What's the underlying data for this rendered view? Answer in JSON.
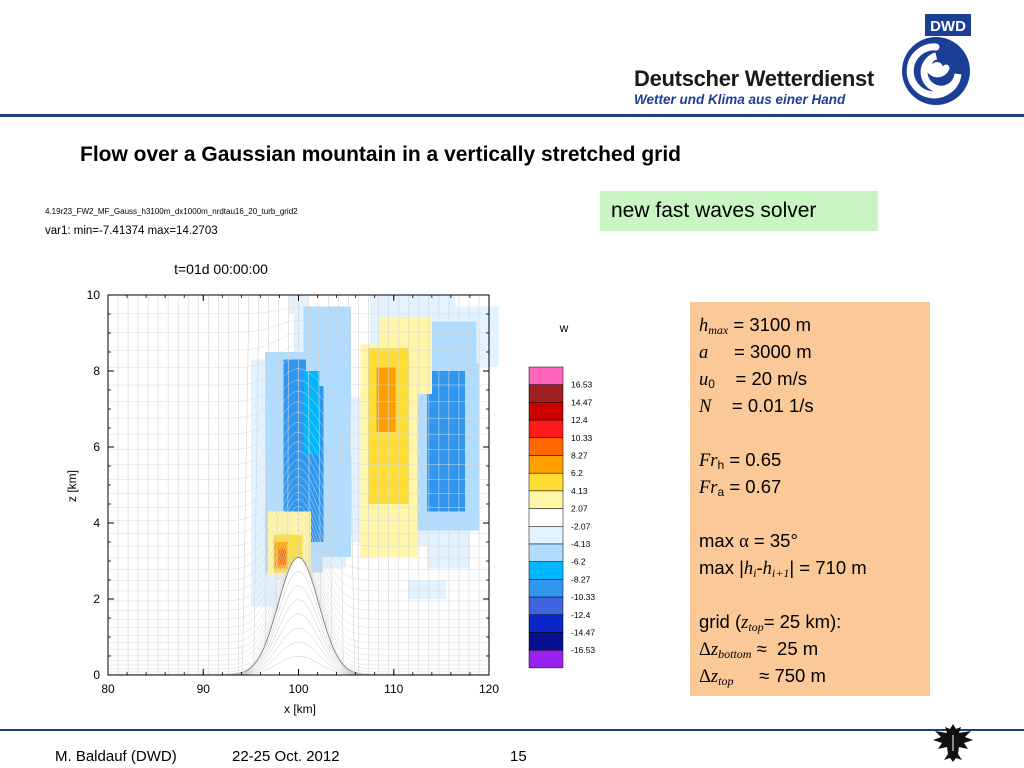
{
  "header": {
    "org_name": "Deutscher Wetterdienst",
    "tagline": "Wetter und Klima aus einer Hand",
    "logo_text": "DWD",
    "brand_color": "#1b3f95"
  },
  "slide_title": "Flow over a Gaussian mountain in a vertically stretched grid",
  "solver_badge": "new fast waves solver",
  "params": {
    "hmax": {
      "sym": "h",
      "sub": "max",
      "val": " = 3100 m"
    },
    "a": {
      "sym": "a",
      "val": "     = 3000 m"
    },
    "u0": {
      "sym": "u",
      "sub": "0",
      "val": "    = 20 m/s"
    },
    "N": {
      "sym": "N",
      "val": "    = 0.01 1/s"
    },
    "Frh": {
      "sym": "Fr",
      "sub": "h",
      "val": " = 0.65"
    },
    "Fra": {
      "sym": "Fr",
      "sub": "a",
      "val": " = 0.67"
    },
    "max_alpha": {
      "pre": "max ",
      "greek": "α",
      "val": " = 35°"
    },
    "max_dh": {
      "pre": "max |",
      "h1": "h",
      "s1": "i",
      "mid": "-",
      "h2": "h",
      "s2": "i+1",
      "val": "| = 710 m"
    },
    "grid": {
      "pre": "grid (",
      "sym": "z",
      "sub": "top",
      "val": "= 25 km):"
    },
    "dz_bottom": {
      "greek": "Δ",
      "sym": "z",
      "sub": "bottom",
      "val": " ≈  25 m"
    },
    "dz_top": {
      "greek": "Δ",
      "sym": "z",
      "sub": "top",
      "val": "     ≈ 750 m"
    }
  },
  "chart_data": {
    "type": "heatmap",
    "file_label": "4.19r23_FW2_MF_Gauss_h3100m_dx1000m_nrdtau16_20_turb_grid2",
    "var_label": "var1:   min=-7.41374   max=14.2703",
    "title": "t=01d 00:00:00",
    "xlabel": "x [km]",
    "ylabel": "z [km]",
    "xlim": [
      80,
      120
    ],
    "ylim": [
      0,
      10
    ],
    "x_ticks": [
      "80",
      "90",
      "100",
      "110",
      "120"
    ],
    "y_ticks": [
      "0",
      "2",
      "4",
      "6",
      "8",
      "10"
    ],
    "x_tick_values": [
      80,
      90,
      100,
      110,
      120
    ],
    "y_tick_values": [
      0,
      2,
      4,
      6,
      8,
      10
    ],
    "terrain": {
      "hmax_m": 3100,
      "a_m": 3000,
      "center_km": 100
    },
    "colorbar": {
      "label": "w",
      "colors": [
        "#ff66bb",
        "#a01e1e",
        "#cc0000",
        "#ff1a1a",
        "#ff6a00",
        "#ffa000",
        "#ffdd33",
        "#fff6a8",
        "#ffffff",
        "#e2f2ff",
        "#b0dcff",
        "#00b6ff",
        "#2f97ef",
        "#3f64e0",
        "#0b26c8",
        "#06108f",
        "#9a22ee"
      ],
      "labels": [
        "16.53",
        "14.47",
        "12.4",
        "10.33",
        "8.27",
        "6.2",
        "4.13",
        "2.07",
        "-2.07",
        "-4.13",
        "-6.2",
        "-8.27",
        "-10.33",
        "-12.4",
        "-14.47",
        "-16.53"
      ]
    },
    "fields": [
      {
        "color": "#e2f2ff",
        "cells": [
          [
            95,
            2.5,
            6.5,
            8.3
          ],
          [
            99.5,
            2.8,
            5.5,
            9.5
          ],
          [
            95,
            1.8,
            2.8,
            3.6
          ],
          [
            105,
            3.5,
            6.5,
            7.3
          ],
          [
            107,
            3.4,
            7.5,
            8.5
          ],
          [
            107.5,
            7.7,
            9,
            10
          ],
          [
            113.5,
            2.8,
            4.5,
            8.5
          ],
          [
            114,
            8.1,
            7,
            9.7
          ],
          [
            111.5,
            2,
            4,
            2.5
          ],
          [
            99,
            9.5,
            2,
            10
          ]
        ]
      },
      {
        "color": "#b0dcff",
        "cells": [
          [
            96.5,
            2.7,
            6,
            8.5
          ],
          [
            100.5,
            3.1,
            5,
            9.7
          ],
          [
            112,
            3.8,
            7,
            8.2
          ],
          [
            113.2,
            7.8,
            5.5,
            9.3
          ]
        ]
      },
      {
        "color": "#2f97ef",
        "cells": [
          [
            98.4,
            3.2,
            2.4,
            8.3
          ],
          [
            100.2,
            3.5,
            2.4,
            7.6
          ],
          [
            113.5,
            4.3,
            4,
            8
          ]
        ]
      },
      {
        "color": "#00b6ff",
        "cells": [
          [
            100.6,
            5.8,
            1.6,
            8
          ]
        ]
      },
      {
        "color": "#fff6a8",
        "cells": [
          [
            106.5,
            3.1,
            6,
            8.7
          ],
          [
            108.5,
            7.4,
            5.5,
            9.4
          ],
          [
            96.8,
            2.6,
            4.5,
            4.3
          ]
        ]
      },
      {
        "color": "#ffdd33",
        "cells": [
          [
            107.3,
            4.5,
            4.3,
            8.6
          ],
          [
            97.4,
            2.7,
            3,
            3.7
          ]
        ]
      },
      {
        "color": "#ffa000",
        "cells": [
          [
            108.2,
            6.4,
            2,
            8.1
          ],
          [
            97.5,
            2.8,
            1.4,
            3.5
          ]
        ]
      },
      {
        "color": "#ff6a00",
        "cells": [
          [
            97.9,
            2.9,
            0.8,
            3.3
          ]
        ]
      }
    ]
  },
  "footer": {
    "author": "M. Baldauf (DWD)",
    "date": "22-25 Oct. 2012",
    "page": "15"
  }
}
